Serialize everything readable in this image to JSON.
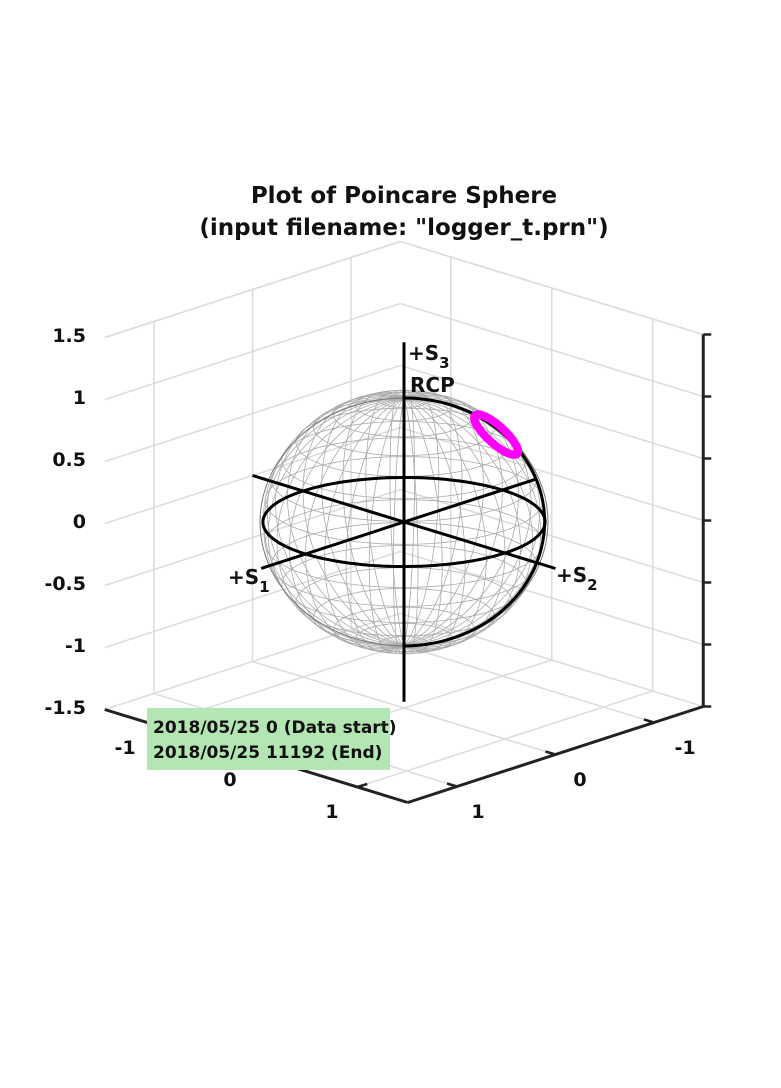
{
  "chart_data": {
    "type": "scatter",
    "title": "Plot of Poincare Sphere",
    "subtitle": "(input filename: \"logger_t.prn\")",
    "z_ticks": [
      "1.5",
      "1",
      "0.5",
      "0",
      "-0.5",
      "-1",
      "-1.5"
    ],
    "x_ticks": [
      "-1",
      "0",
      "1"
    ],
    "y_ticks": [
      "-1",
      "0",
      "1"
    ],
    "xlim": [
      -1.5,
      1.5
    ],
    "ylim": [
      -1.5,
      1.5
    ],
    "zlim": [
      -1.5,
      1.5
    ],
    "grid": true,
    "axis_labels": {
      "s1": {
        "prefix": "+S",
        "sub": "1"
      },
      "s2": {
        "prefix": "+S",
        "sub": "2"
      },
      "s3": {
        "prefix": "+S",
        "sub": "3"
      },
      "pole": "RCP"
    },
    "series": [
      {
        "marker_color": "#ff00ff",
        "ring_center": {
          "s1": -0.42,
          "s2": 0.52,
          "s3": 0.74
        },
        "ring_angular_radius_deg": 12,
        "points": 60
      }
    ],
    "legend": {
      "placement": "bottom-left",
      "background": "#b3e6b3",
      "lines": [
        "2018/05/25  0 (Data start)",
        "2018/05/25  11192 (End)"
      ]
    },
    "colors": {
      "sphere_mesh": "#aaaaaa",
      "great_circle": "#000000",
      "grid": "#dddddd"
    }
  }
}
